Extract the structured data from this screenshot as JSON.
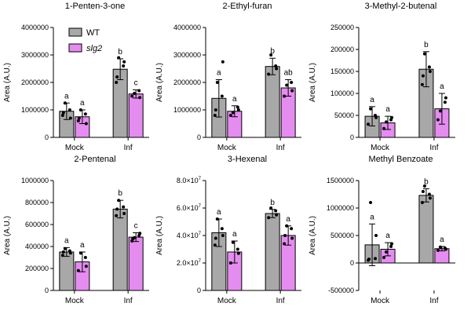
{
  "colors": {
    "wt": "#a8a8a8",
    "slg2": "#e58cf0",
    "outline": "#000000",
    "dot": "#000000"
  },
  "legend": [
    {
      "key": "wt",
      "label": "WT",
      "italic": false
    },
    {
      "key": "slg2",
      "label": "slg2",
      "italic": true
    }
  ],
  "chart_data": [
    {
      "type": "bar",
      "title": "1-Penten-3-one",
      "ylabel": "Area  (A.U.)",
      "categories": [
        "Mock",
        "Inf"
      ],
      "ylim": [
        0,
        4000000
      ],
      "yticks": [
        0,
        1000000,
        2000000,
        3000000,
        4000000
      ],
      "ytick_labels": [
        "0",
        "1000000",
        "2000000",
        "3000000",
        "4000000"
      ],
      "series": [
        {
          "key": "wt",
          "values": [
            950000,
            2480000
          ],
          "errors": [
            300000,
            380000
          ],
          "letters": [
            "a",
            "b"
          ],
          "points": [
            [
              800000,
              1000000,
              1250000,
              700000,
              900000
            ],
            [
              2000000,
              2600000,
              2900000,
              2750000,
              2200000
            ]
          ]
        },
        {
          "key": "slg2",
          "values": [
            750000,
            1580000
          ],
          "errors": [
            250000,
            150000
          ],
          "letters": [
            "a",
            "c"
          ],
          "points": [
            [
              600000,
              850000,
              1000000,
              500000,
              700000
            ],
            [
              1500000,
              1700000,
              1600000,
              1450000
            ]
          ]
        }
      ]
    },
    {
      "type": "bar",
      "title": "2-Ethyl-furan",
      "ylabel": "Area  (A.U.)",
      "categories": [
        "Mock",
        "Inf"
      ],
      "ylim": [
        0,
        4000000
      ],
      "yticks": [
        0,
        1000000,
        2000000,
        3000000,
        4000000
      ],
      "ytick_labels": [
        "0",
        "1000000",
        "2000000",
        "3000000",
        "4000000"
      ],
      "series": [
        {
          "key": "wt",
          "values": [
            1420000,
            2580000
          ],
          "errors": [
            680000,
            300000
          ],
          "letters": [
            "a",
            "b"
          ],
          "points": [
            [
              800000,
              1500000,
              2000000,
              2750000,
              1000000
            ],
            [
              2300000,
              2600000,
              3000000,
              2500000
            ]
          ]
        },
        {
          "key": "slg2",
          "values": [
            950000,
            1800000
          ],
          "errors": [
            200000,
            300000
          ],
          "letters": [
            "a",
            "ab"
          ],
          "points": [
            [
              800000,
              1100000,
              900000,
              1000000
            ],
            [
              1500000,
              2000000,
              1900000,
              1700000
            ]
          ]
        }
      ]
    },
    {
      "type": "bar",
      "title": "3-Methyl-2-butenal",
      "ylabel": "Area  (A.U.)",
      "categories": [
        "Mock",
        "Inf"
      ],
      "ylim": [
        0,
        250000
      ],
      "yticks": [
        0,
        50000,
        100000,
        150000,
        200000,
        250000
      ],
      "ytick_labels": [
        "0",
        "50000",
        "100000",
        "150000",
        "200000",
        "250000"
      ],
      "series": [
        {
          "key": "wt",
          "values": [
            48000,
            155000
          ],
          "errors": [
            22000,
            40000
          ],
          "letters": [
            "a",
            "b"
          ],
          "points": [
            [
              30000,
              50000,
              65000,
              45000
            ],
            [
              120000,
              160000,
              190000,
              150000,
              140000
            ]
          ]
        },
        {
          "key": "slg2",
          "values": [
            33000,
            65000
          ],
          "errors": [
            15000,
            35000
          ],
          "letters": [
            "a",
            "a"
          ],
          "points": [
            [
              20000,
              40000,
              35000,
              45000
            ],
            [
              40000,
              80000,
              60000,
              90000
            ]
          ]
        }
      ]
    },
    {
      "type": "bar",
      "title": "2-Pentenal",
      "ylabel": "Area  (A.U.)",
      "categories": [
        "Mock",
        "Inf"
      ],
      "ylim": [
        0,
        1000000
      ],
      "yticks": [
        0,
        200000,
        400000,
        600000,
        800000,
        1000000
      ],
      "ytick_labels": [
        "0",
        "200000",
        "400000",
        "600000",
        "800000",
        "1000000"
      ],
      "series": [
        {
          "key": "wt",
          "values": [
            350000,
            740000
          ],
          "errors": [
            40000,
            80000
          ],
          "letters": [
            "a",
            "b"
          ],
          "points": [
            [
              320000,
              360000,
              380000,
              340000,
              350000
            ],
            [
              680000,
              760000,
              820000,
              700000,
              740000
            ]
          ]
        },
        {
          "key": "slg2",
          "values": [
            260000,
            485000
          ],
          "errors": [
            90000,
            40000
          ],
          "letters": [
            "a",
            "c"
          ],
          "points": [
            [
              180000,
              300000,
              340000,
              220000
            ],
            [
              450000,
              500000,
              480000,
              520000,
              470000
            ]
          ]
        }
      ]
    },
    {
      "type": "bar",
      "title": "3-Hexenal",
      "ylabel": "Area  (A.U.)",
      "categories": [
        "Mock",
        "Inf"
      ],
      "ylim": [
        0,
        80000000
      ],
      "exponent_ticks": true,
      "yticks": [
        0,
        20000000,
        40000000,
        60000000,
        80000000
      ],
      "ytick_labels": [
        "0",
        "2.0×10",
        "4.0×10",
        "6.0×10",
        "8.0×10"
      ],
      "ytick_exponent": "7",
      "series": [
        {
          "key": "wt",
          "values": [
            42000000,
            56000000
          ],
          "errors": [
            10000000,
            3000000
          ],
          "letters": [
            "a",
            "b"
          ],
          "points": [
            [
              33000000,
              45000000,
              52000000,
              40000000,
              38000000
            ],
            [
              53000000,
              58000000,
              60000000,
              55000000
            ]
          ]
        },
        {
          "key": "slg2",
          "values": [
            28000000,
            40000000
          ],
          "errors": [
            8000000,
            7000000
          ],
          "letters": [
            "a",
            "a"
          ],
          "points": [
            [
              20000000,
              30000000,
              35000000,
              27000000
            ],
            [
              34000000,
              45000000,
              47000000,
              38000000,
              40000000
            ]
          ]
        }
      ]
    },
    {
      "type": "bar",
      "title": "Methyl Benzoate",
      "ylabel": "Area  (A.U.)",
      "categories": [
        "Mock",
        "Inf"
      ],
      "ylim": [
        -500000,
        1500000
      ],
      "yticks": [
        -500000,
        0,
        500000,
        1000000,
        1500000
      ],
      "ytick_labels": [
        "-500000",
        "0",
        "500000",
        "1000000",
        "1500000"
      ],
      "series": [
        {
          "key": "wt",
          "values": [
            330000,
            1230000
          ],
          "errors": [
            380000,
            120000
          ],
          "letters": [
            "a",
            "b"
          ],
          "points": [
            [
              50000,
              80000,
              1100000,
              500000,
              70000
            ],
            [
              1100000,
              1250000,
              1400000,
              1180000,
              1300000
            ]
          ]
        },
        {
          "key": "slg2",
          "values": [
            250000,
            260000
          ],
          "errors": [
            120000,
            40000
          ],
          "letters": [
            "a",
            "a"
          ],
          "points": [
            [
              100000,
              300000,
              200000,
              350000
            ],
            [
              230000,
              270000,
              290000,
              250000
            ]
          ]
        }
      ]
    }
  ]
}
